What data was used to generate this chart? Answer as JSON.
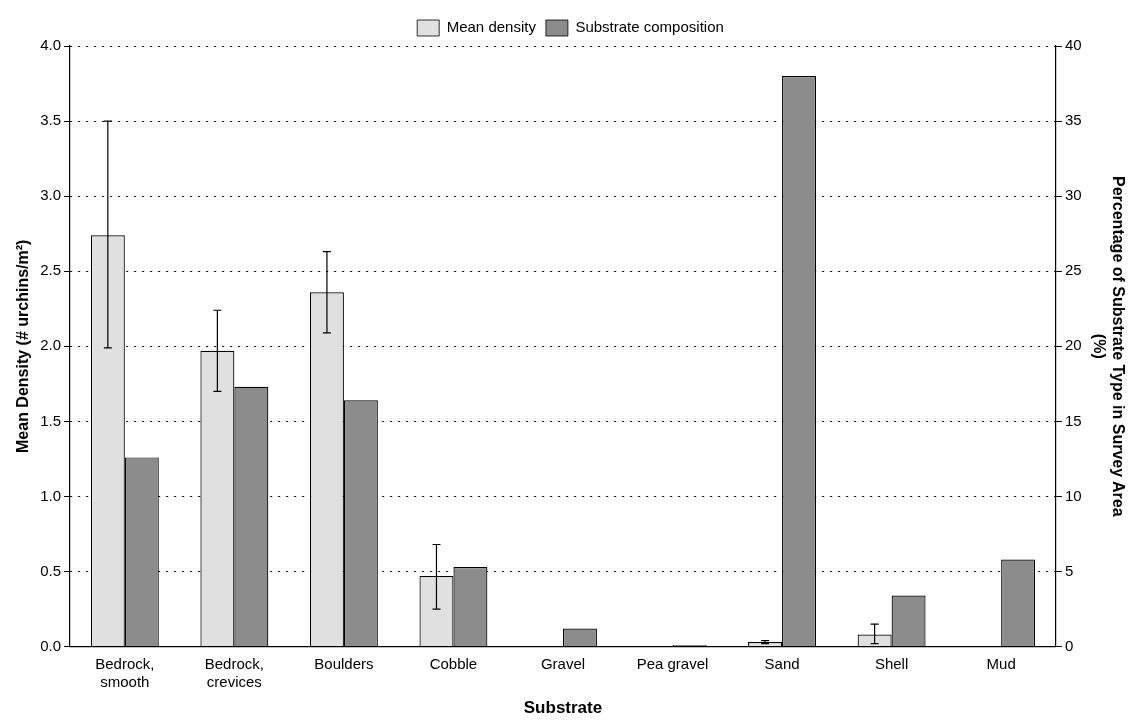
{
  "chart_data": {
    "type": "bar",
    "xlabel": "Substrate",
    "ylabel": "Mean Density (# urchins/m²)",
    "y2label": "Percentage of Substrate Type in Survey Area (%)",
    "categories": [
      "Bedrock, smooth",
      "Bedrock, crevices",
      "Boulders",
      "Cobble",
      "Gravel",
      "Pea gravel",
      "Sand",
      "Shell",
      "Mud"
    ],
    "series": [
      {
        "name": "Mean density",
        "color": "#e0e0e0",
        "values": [
          2.74,
          1.97,
          2.36,
          0.47,
          null,
          null,
          0.03,
          0.08,
          null
        ],
        "errors": [
          [
            1.99,
            3.5
          ],
          [
            1.7,
            2.24
          ],
          [
            2.09,
            2.63
          ],
          [
            0.25,
            0.68
          ],
          null,
          null,
          [
            0.02,
            0.04
          ],
          [
            0.02,
            0.15
          ],
          null
        ]
      },
      {
        "name": "Substrate composition",
        "color": "#8c8c8c",
        "axis": "y2",
        "values": [
          12.6,
          17.3,
          16.4,
          5.3,
          1.2,
          0.1,
          38.0,
          3.4,
          5.8
        ]
      }
    ],
    "ylim": [
      0,
      4
    ],
    "yticks": [
      {
        "value": 0,
        "label": "0.0"
      },
      0.5,
      {
        "value": 1,
        "label": "1.0"
      },
      1.5,
      {
        "value": 2,
        "label": "2.0"
      },
      2.5,
      {
        "value": 3,
        "label": "3.0"
      },
      3.5,
      {
        "value": 4,
        "label": "4.0"
      }
    ],
    "y2lim": [
      0,
      40
    ],
    "y2ticks": [
      0,
      5,
      10,
      15,
      20,
      25,
      30,
      35,
      40
    ],
    "grid": "y",
    "legend": "top"
  }
}
